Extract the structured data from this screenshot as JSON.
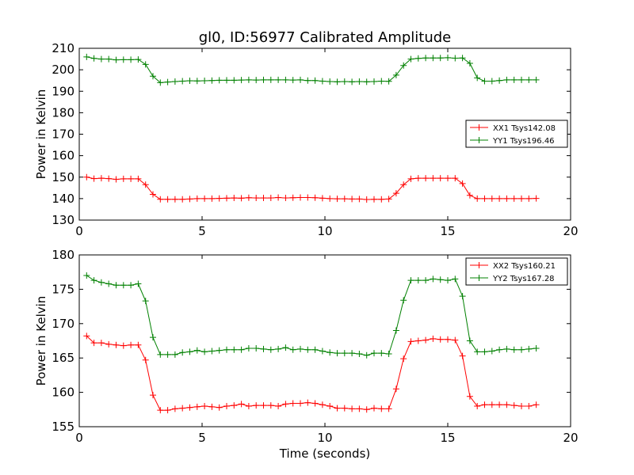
{
  "title": "gl0, ID:56977 Calibrated Amplitude",
  "colors": {
    "red": "#ff0000",
    "green": "#008000"
  },
  "chart_data": [
    {
      "type": "line",
      "title": "gl0, ID:56977 Calibrated Amplitude",
      "xlabel": "",
      "ylabel": "Power in Kelvin",
      "xlim": [
        0,
        20
      ],
      "ylim": [
        130,
        210
      ],
      "xticks": [
        "0",
        "5",
        "10",
        "15",
        "20"
      ],
      "yticks": [
        "130",
        "140",
        "150",
        "160",
        "170",
        "180",
        "190",
        "200",
        "210"
      ],
      "grid": false,
      "legend": "center-right",
      "x": [
        0.3,
        0.6,
        0.9,
        1.2,
        1.5,
        1.8,
        2.1,
        2.4,
        2.7,
        3.0,
        3.3,
        3.6,
        3.9,
        4.2,
        4.5,
        4.8,
        5.1,
        5.4,
        5.7,
        6.0,
        6.3,
        6.6,
        6.9,
        7.2,
        7.5,
        7.8,
        8.1,
        8.4,
        8.7,
        9.0,
        9.3,
        9.6,
        9.9,
        10.2,
        10.5,
        10.8,
        11.1,
        11.4,
        11.7,
        12.0,
        12.3,
        12.6,
        12.9,
        13.2,
        13.5,
        13.8,
        14.1,
        14.4,
        14.7,
        15.0,
        15.3,
        15.6,
        15.9,
        16.2,
        16.5,
        16.8,
        17.1,
        17.4,
        17.7,
        18.0,
        18.3,
        18.6
      ],
      "series": [
        {
          "name": "XX1 Tsys142.08",
          "color": "#ff0000",
          "values": [
            150.0,
            149.3,
            149.5,
            149.3,
            149.0,
            149.2,
            149.2,
            149.2,
            146.5,
            142.0,
            139.7,
            139.7,
            139.7,
            139.7,
            139.8,
            140.0,
            140.0,
            140.0,
            140.1,
            140.2,
            140.3,
            140.2,
            140.4,
            140.3,
            140.3,
            140.3,
            140.5,
            140.3,
            140.4,
            140.5,
            140.5,
            140.4,
            140.2,
            140.0,
            139.9,
            139.9,
            139.8,
            139.8,
            139.6,
            139.7,
            139.7,
            139.8,
            142.5,
            146.5,
            149.2,
            149.5,
            149.5,
            149.5,
            149.5,
            149.5,
            149.5,
            147.0,
            141.5,
            140.0,
            140.0,
            140.0,
            140.0,
            140.0,
            140.0,
            140.0,
            140.0,
            140.1
          ]
        },
        {
          "name": "YY1 Tsys196.46",
          "color": "#008000",
          "values": [
            206.0,
            205.3,
            205.0,
            205.0,
            204.6,
            204.7,
            204.7,
            204.8,
            202.5,
            197.0,
            194.0,
            194.3,
            194.5,
            194.7,
            194.9,
            194.8,
            194.9,
            195.0,
            195.1,
            195.1,
            195.1,
            195.2,
            195.3,
            195.2,
            195.3,
            195.3,
            195.3,
            195.3,
            195.2,
            195.3,
            195.0,
            195.0,
            194.7,
            194.5,
            194.4,
            194.5,
            194.4,
            194.5,
            194.4,
            194.5,
            194.7,
            194.6,
            197.5,
            202.0,
            205.0,
            205.3,
            205.5,
            205.5,
            205.5,
            205.6,
            205.4,
            205.5,
            203.0,
            196.2,
            194.7,
            194.7,
            195.0,
            195.3,
            195.3,
            195.3,
            195.3,
            195.3
          ]
        }
      ]
    },
    {
      "type": "line",
      "title": "",
      "xlabel": "Time (seconds)",
      "ylabel": "Power in Kelvin",
      "xlim": [
        0,
        20
      ],
      "ylim": [
        155,
        180
      ],
      "xticks": [
        "0",
        "5",
        "10",
        "15",
        "20"
      ],
      "yticks": [
        "155",
        "160",
        "165",
        "170",
        "175",
        "180"
      ],
      "grid": false,
      "legend": "top-right",
      "x": [
        0.3,
        0.6,
        0.9,
        1.2,
        1.5,
        1.8,
        2.1,
        2.4,
        2.7,
        3.0,
        3.3,
        3.6,
        3.9,
        4.2,
        4.5,
        4.8,
        5.1,
        5.4,
        5.7,
        6.0,
        6.3,
        6.6,
        6.9,
        7.2,
        7.5,
        7.8,
        8.1,
        8.4,
        8.7,
        9.0,
        9.3,
        9.6,
        9.9,
        10.2,
        10.5,
        10.8,
        11.1,
        11.4,
        11.7,
        12.0,
        12.3,
        12.6,
        12.9,
        13.2,
        13.5,
        13.8,
        14.1,
        14.4,
        14.7,
        15.0,
        15.3,
        15.6,
        15.9,
        16.2,
        16.5,
        16.8,
        17.1,
        17.4,
        17.7,
        18.0,
        18.3,
        18.6
      ],
      "series": [
        {
          "name": "XX2 Tsys160.21",
          "color": "#ff0000",
          "values": [
            168.2,
            167.2,
            167.2,
            167.0,
            166.9,
            166.8,
            166.9,
            166.9,
            164.7,
            159.6,
            157.4,
            157.4,
            157.6,
            157.7,
            157.8,
            157.9,
            158.0,
            157.9,
            157.8,
            158.0,
            158.1,
            158.3,
            158.0,
            158.1,
            158.1,
            158.1,
            158.0,
            158.3,
            158.4,
            158.4,
            158.5,
            158.4,
            158.2,
            158.0,
            157.7,
            157.7,
            157.6,
            157.6,
            157.5,
            157.7,
            157.6,
            157.6,
            160.5,
            164.9,
            167.4,
            167.5,
            167.6,
            167.8,
            167.7,
            167.7,
            167.6,
            165.3,
            159.4,
            158.0,
            158.2,
            158.2,
            158.2,
            158.2,
            158.1,
            158.0,
            158.0,
            158.2
          ]
        },
        {
          "name": "YY2 Tsys167.28",
          "color": "#008000",
          "values": [
            177.0,
            176.3,
            176.0,
            175.8,
            175.6,
            175.6,
            175.6,
            175.8,
            173.3,
            168.0,
            165.5,
            165.5,
            165.5,
            165.8,
            165.9,
            166.1,
            165.9,
            166.0,
            166.1,
            166.2,
            166.2,
            166.2,
            166.4,
            166.4,
            166.3,
            166.2,
            166.3,
            166.5,
            166.2,
            166.3,
            166.2,
            166.2,
            166.0,
            165.8,
            165.7,
            165.7,
            165.7,
            165.6,
            165.4,
            165.7,
            165.7,
            165.6,
            169.0,
            173.4,
            176.3,
            176.3,
            176.3,
            176.5,
            176.4,
            176.3,
            176.5,
            174.0,
            167.5,
            165.9,
            165.9,
            166.0,
            166.2,
            166.3,
            166.2,
            166.2,
            166.3,
            166.4
          ]
        }
      ]
    }
  ]
}
